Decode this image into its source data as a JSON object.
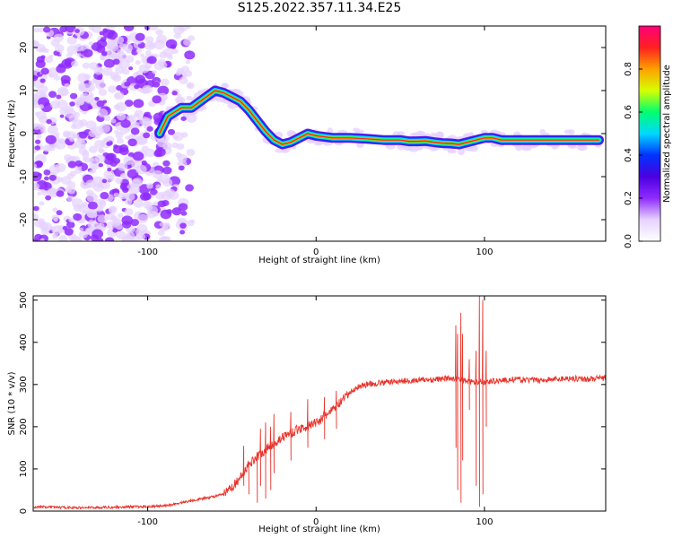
{
  "figure_title": "S125.2022.357.11.34.E25",
  "colors": {
    "snr_line": "#e8332a",
    "spectrogram_noise": "#7a1fff",
    "colormap": [
      "#ffffff",
      "#e6d2ff",
      "#8f2bff",
      "#4b00e0",
      "#0033ff",
      "#00d8ff",
      "#00ff70",
      "#d6ff00",
      "#ffa000",
      "#ff2020",
      "#ff007a"
    ]
  },
  "chart_data": [
    {
      "type": "heatmap",
      "title": "",
      "xlabel": "Height of straight line (km)",
      "ylabel": "Frequency (Hz)",
      "xlim": [
        -168,
        172
      ],
      "ylim": [
        -25,
        25
      ],
      "x_ticks": [
        -100,
        0,
        100
      ],
      "x_tick_labels": [
        "-100",
        "0",
        "100"
      ],
      "y_ticks": [
        -20,
        -10,
        0,
        10,
        20
      ],
      "y_tick_labels": [
        "-20",
        "-10",
        "0",
        "10",
        "20"
      ],
      "grid": false,
      "noise_region_x": [
        -168,
        -88
      ],
      "ridge": {
        "x": [
          -93,
          -88,
          -80,
          -74,
          -67,
          -60,
          -55,
          -50,
          -45,
          -40,
          -35,
          -30,
          -25,
          -20,
          -15,
          -10,
          -5,
          0,
          10,
          20,
          30,
          40,
          50,
          55,
          60,
          65,
          70,
          75,
          80,
          85,
          90,
          95,
          100,
          105,
          110,
          120,
          130,
          140,
          150,
          160,
          168
        ],
        "y": [
          0,
          4,
          6,
          6,
          8,
          10,
          9.5,
          8.5,
          7.5,
          5.5,
          3,
          0.5,
          -1.5,
          -2.5,
          -2,
          -1,
          0,
          -0.5,
          -1,
          -1,
          -1.2,
          -1.5,
          -1.5,
          -1.8,
          -1.8,
          -1.7,
          -2.0,
          -2.2,
          -2.3,
          -2.5,
          -2.0,
          -1.5,
          -1.0,
          -1.0,
          -1.5,
          -1.5,
          -1.5,
          -1.5,
          -1.5,
          -1.5,
          -1.5
        ]
      },
      "colorbar": {
        "label": "Normalized spectral amplitude",
        "range": [
          0,
          1
        ],
        "ticks": [
          0,
          0.2,
          0.4,
          0.6,
          0.8
        ],
        "tick_labels": [
          "0.0",
          "0.2",
          "0.4",
          "0.6",
          "0.8"
        ]
      }
    },
    {
      "type": "line",
      "title": "",
      "xlabel": "Height of straight line (km)",
      "ylabel": "SNR (10 * v/v)",
      "xlim": [
        -168,
        172
      ],
      "ylim": [
        0,
        510
      ],
      "x_ticks": [
        -100,
        0,
        100
      ],
      "x_tick_labels": [
        "-100",
        "0",
        "100"
      ],
      "y_ticks": [
        0,
        100,
        200,
        300,
        400,
        500
      ],
      "y_tick_labels": [
        "0",
        "100",
        "200",
        "300",
        "400",
        "500"
      ],
      "grid": false,
      "series": [
        {
          "x": [
            -168,
            -140,
            -110,
            -90,
            -80,
            -70,
            -60,
            -55,
            -50,
            -45,
            -40,
            -35,
            -30,
            -25,
            -20,
            -15,
            -10,
            -5,
            0,
            5,
            10,
            15,
            20,
            25,
            30,
            40,
            50,
            60,
            70,
            75,
            80,
            85,
            90,
            95,
            100,
            105,
            110,
            120,
            130,
            140,
            150,
            160,
            172
          ],
          "y": [
            10,
            8,
            10,
            12,
            20,
            28,
            35,
            40,
            55,
            80,
            110,
            130,
            145,
            160,
            175,
            185,
            195,
            200,
            210,
            225,
            240,
            260,
            280,
            295,
            300,
            305,
            308,
            310,
            312,
            313,
            315,
            312,
            308,
            305,
            305,
            308,
            310,
            312,
            310,
            312,
            315,
            313,
            315
          ]
        }
      ],
      "spikes": [
        {
          "x": -43,
          "min": 60,
          "max": 155
        },
        {
          "x": -40,
          "min": 40,
          "max": 100
        },
        {
          "x": -35,
          "min": 20,
          "max": 140
        },
        {
          "x": -33,
          "min": 60,
          "max": 195
        },
        {
          "x": -30,
          "min": 30,
          "max": 210
        },
        {
          "x": -27,
          "min": 50,
          "max": 200
        },
        {
          "x": -25,
          "min": 90,
          "max": 230
        },
        {
          "x": -15,
          "min": 120,
          "max": 235
        },
        {
          "x": -5,
          "min": 150,
          "max": 265
        },
        {
          "x": 5,
          "min": 170,
          "max": 270
        },
        {
          "x": 12,
          "min": 195,
          "max": 285
        },
        {
          "x": 83,
          "min": 150,
          "max": 440
        },
        {
          "x": 84,
          "min": 50,
          "max": 420
        },
        {
          "x": 86,
          "min": 20,
          "max": 470
        },
        {
          "x": 87,
          "min": 120,
          "max": 420
        },
        {
          "x": 91,
          "min": 240,
          "max": 360
        },
        {
          "x": 95,
          "min": 60,
          "max": 380
        },
        {
          "x": 97,
          "min": 10,
          "max": 510
        },
        {
          "x": 99,
          "min": 40,
          "max": 500
        },
        {
          "x": 101,
          "min": 200,
          "max": 380
        }
      ]
    }
  ]
}
